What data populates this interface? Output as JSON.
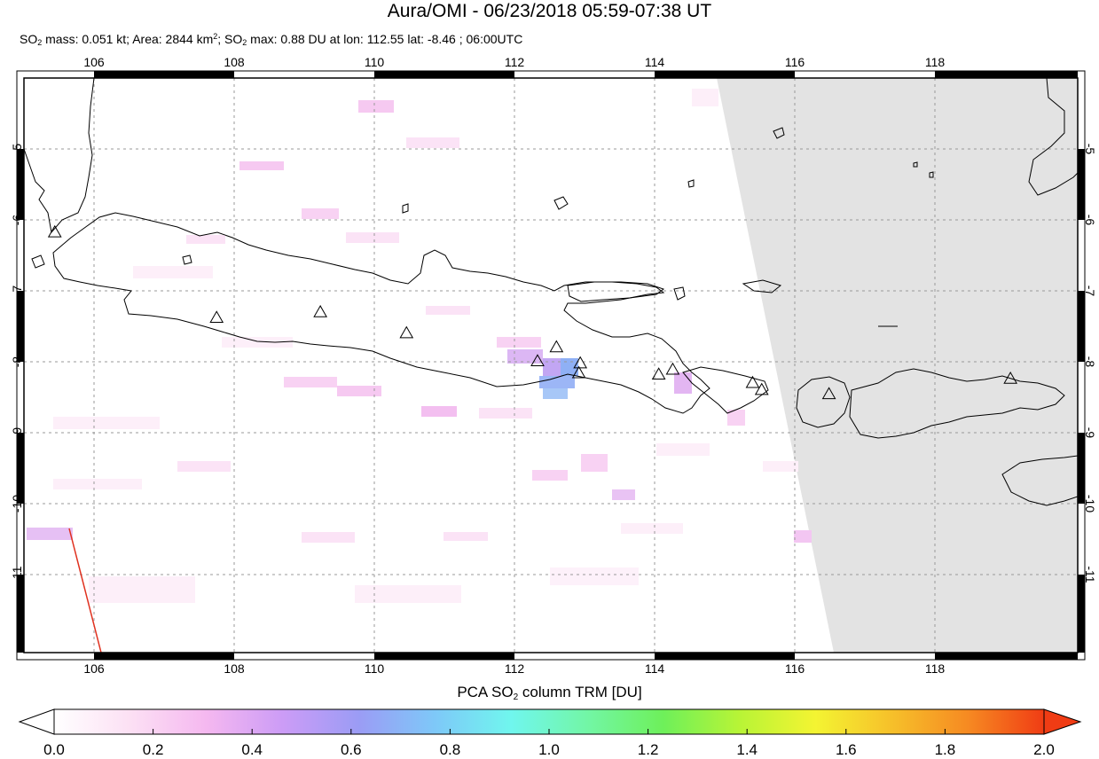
{
  "header": {
    "title": "Aura/OMI - 06/23/2018 05:59-07:38 UT",
    "stats": {
      "mass_prefix": "SO",
      "mass_sub": "2",
      "mass_text": " mass: 0.051 kt; Area: 2844 km",
      "area_sup": "2",
      "max_prefix": "; SO",
      "max_sub": "2",
      "max_text": " max: 0.88 DU at lon: 112.55 lat: -8.46 ; 06:00UTC"
    }
  },
  "map": {
    "lon_ticks": [
      "106",
      "108",
      "110",
      "112",
      "114",
      "116",
      "118"
    ],
    "lat_ticks": [
      "-5",
      "-6",
      "-7",
      "-8",
      "-9",
      "-10",
      "-11"
    ],
    "lon_range": [
      104.98,
      120.02
    ],
    "lat_range": [
      -12.1,
      -3.9
    ],
    "no_data_color": "#e3e3e3",
    "coastline_color": "#000000",
    "volcano_marker": "triangle-icon",
    "volcanoes": [
      {
        "lon": 105.42,
        "lat": -6.1
      },
      {
        "lon": 107.73,
        "lat": -7.32
      },
      {
        "lon": 109.21,
        "lat": -7.24
      },
      {
        "lon": 110.44,
        "lat": -7.54
      },
      {
        "lon": 112.31,
        "lat": -7.94
      },
      {
        "lon": 112.58,
        "lat": -7.74
      },
      {
        "lon": 112.92,
        "lat": -7.97
      },
      {
        "lon": 112.9,
        "lat": -8.11
      },
      {
        "lon": 114.04,
        "lat": -8.13
      },
      {
        "lon": 114.24,
        "lat": -8.06
      },
      {
        "lon": 115.38,
        "lat": -8.25
      },
      {
        "lon": 115.51,
        "lat": -8.35
      },
      {
        "lon": 116.47,
        "lat": -8.41
      },
      {
        "lon": 119.06,
        "lat": -8.19
      }
    ]
  },
  "colorbar": {
    "title_prefix": "PCA SO",
    "title_sub": "2",
    "title_suffix": " column TRM [DU]",
    "labels": [
      "0.0",
      "0.2",
      "0.4",
      "0.6",
      "0.8",
      "1.0",
      "1.2",
      "1.4",
      "1.6",
      "1.8",
      "2.0"
    ],
    "range": [
      0.0,
      2.0
    ],
    "stops": [
      "#ffffff",
      "#fce0f4",
      "#f5b8f0",
      "#cc9cf6",
      "#9b9cf5",
      "#7ec8f8",
      "#70f6ee",
      "#72f6a6",
      "#6ef05a",
      "#b8f436",
      "#f4f432",
      "#f6c02a",
      "#f68a22",
      "#f03c14"
    ]
  }
}
